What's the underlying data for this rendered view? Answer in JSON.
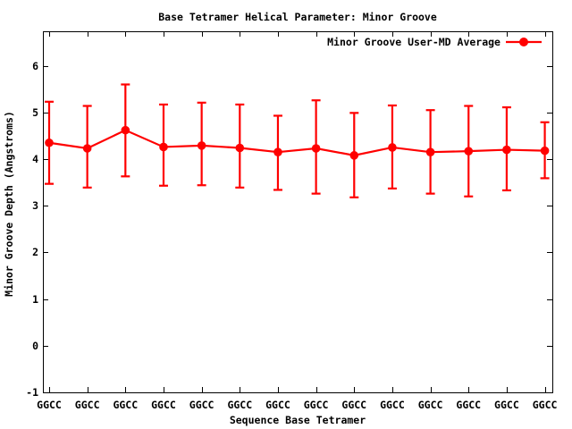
{
  "title": "Base Tetramer Helical Parameter: Minor Groove",
  "colors": {
    "series": "#ff0000",
    "axis": "#000000",
    "text": "#000000",
    "background": "#ffffff"
  },
  "legend": {
    "label": "Minor Groove User-MD Average",
    "marker": "filled-circle-on-line",
    "position": "top-right-inside"
  },
  "chart_data": {
    "type": "line",
    "title": "Base Tetramer Helical Parameter: Minor Groove",
    "xlabel": "Sequence Base Tetramer",
    "ylabel": "Minor Groove Depth (Angstroms)",
    "categories": [
      "GGCC",
      "GGCC",
      "GGCC",
      "GGCC",
      "GGCC",
      "GGCC",
      "GGCC",
      "GGCC",
      "GGCC",
      "GGCC",
      "GGCC",
      "GGCC",
      "GGCC",
      "GGCC"
    ],
    "series": [
      {
        "name": "Minor Groove User-MD Average",
        "color": "#ff0000",
        "marker": "filled-circle",
        "error_bars": true,
        "values": [
          4.35,
          4.23,
          4.62,
          4.26,
          4.29,
          4.24,
          4.15,
          4.23,
          4.08,
          4.25,
          4.15,
          4.17,
          4.2,
          4.18
        ],
        "error_high": [
          5.23,
          5.14,
          5.6,
          5.17,
          5.21,
          5.17,
          4.93,
          5.26,
          4.99,
          5.15,
          5.05,
          5.14,
          5.11,
          4.79
        ],
        "error_low": [
          3.47,
          3.39,
          3.63,
          3.43,
          3.44,
          3.39,
          3.34,
          3.26,
          3.18,
          3.37,
          3.26,
          3.2,
          3.33,
          3.59
        ]
      }
    ],
    "ylim": [
      -1,
      6.74
    ],
    "yticks": [
      -1,
      0,
      1,
      2,
      3,
      4,
      5,
      6
    ],
    "grid": false,
    "legend_position": "top-right",
    "tick_style": "inward-mirrored"
  }
}
